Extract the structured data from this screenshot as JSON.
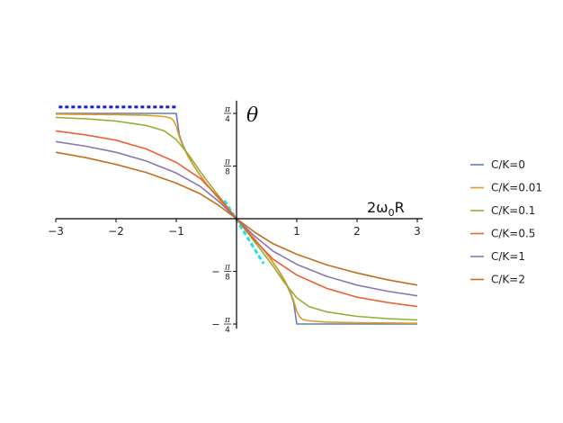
{
  "chart_data": {
    "type": "line",
    "xlabel": "2ω0R",
    "ylabel": "θ",
    "xlim": [
      -3,
      3
    ],
    "ylim": [
      -0.82,
      0.88
    ],
    "x_ticks": [
      {
        "value": -3,
        "label": "−3"
      },
      {
        "value": -2,
        "label": "−2"
      },
      {
        "value": -1,
        "label": "−1"
      },
      {
        "value": 1,
        "label": "1"
      },
      {
        "value": 2,
        "label": "2"
      },
      {
        "value": 3,
        "label": "3"
      }
    ],
    "y_ticks": [
      {
        "value": 0.785398,
        "num": "π",
        "den": "4",
        "neg": false
      },
      {
        "value": 0.392699,
        "num": "π",
        "den": "8",
        "neg": false
      },
      {
        "value": -0.392699,
        "num": "π",
        "den": "8",
        "neg": true
      },
      {
        "value": -0.785398,
        "num": "π",
        "den": "4",
        "neg": true
      }
    ],
    "legend_position": "right",
    "series": [
      {
        "name": "C/K=0",
        "color": "#5e81b5",
        "x": [
          -3,
          -1,
          -0.95,
          -0.9,
          -0.8,
          -0.7,
          -0.6,
          -0.5,
          -0.4,
          -0.3,
          -0.2,
          -0.1,
          0,
          0.1,
          0.2,
          0.3,
          0.4,
          0.5,
          0.6,
          0.7,
          0.8,
          0.9,
          0.95,
          1,
          3
        ],
        "y": [
          0.785,
          0.785,
          0.627,
          0.561,
          0.464,
          0.388,
          0.322,
          0.262,
          0.206,
          0.152,
          0.101,
          0.05,
          0,
          -0.05,
          -0.101,
          -0.152,
          -0.206,
          -0.262,
          -0.322,
          -0.388,
          -0.464,
          -0.561,
          -0.627,
          -0.785,
          -0.785
        ]
      },
      {
        "name": "C/K=0.01",
        "color": "#e19c24",
        "x": [
          -3,
          -2,
          -1.5,
          -1.2,
          -1.1,
          -1.05,
          -1,
          -0.95,
          -0.9,
          -0.8,
          -0.7,
          -0.6,
          -0.5,
          -0.4,
          -0.3,
          -0.2,
          -0.1,
          0,
          0.1,
          0.2,
          0.3,
          0.4,
          0.5,
          0.6,
          0.7,
          0.8,
          0.9,
          0.95,
          1,
          1.05,
          1.1,
          1.2,
          1.5,
          2,
          3
        ],
        "y": [
          0.78,
          0.776,
          0.771,
          0.762,
          0.752,
          0.735,
          0.69,
          0.612,
          0.553,
          0.46,
          0.386,
          0.321,
          0.261,
          0.205,
          0.152,
          0.101,
          0.05,
          0,
          -0.05,
          -0.101,
          -0.152,
          -0.205,
          -0.261,
          -0.321,
          -0.386,
          -0.46,
          -0.553,
          -0.612,
          -0.69,
          -0.735,
          -0.752,
          -0.762,
          -0.771,
          -0.776,
          -0.78
        ]
      },
      {
        "name": "C/K=0.1",
        "color": "#8fb032",
        "x": [
          -3,
          -2.5,
          -2,
          -1.5,
          -1.2,
          -1,
          -0.8,
          -0.6,
          -0.4,
          -0.2,
          0,
          0.2,
          0.4,
          0.6,
          0.8,
          1,
          1.2,
          1.5,
          2,
          2.5,
          3
        ],
        "y": [
          0.755,
          0.745,
          0.728,
          0.695,
          0.655,
          0.59,
          0.48,
          0.35,
          0.23,
          0.115,
          0,
          -0.115,
          -0.23,
          -0.35,
          -0.48,
          -0.59,
          -0.655,
          -0.695,
          -0.728,
          -0.745,
          -0.755
        ]
      },
      {
        "name": "C/K=0.5",
        "color": "#eb6235",
        "x": [
          -3,
          -2.5,
          -2,
          -1.5,
          -1,
          -0.6,
          -0.3,
          0,
          0.3,
          0.6,
          1,
          1.5,
          2,
          2.5,
          3
        ],
        "y": [
          0.655,
          0.625,
          0.585,
          0.52,
          0.42,
          0.3,
          0.16,
          0,
          -0.16,
          -0.3,
          -0.42,
          -0.52,
          -0.585,
          -0.625,
          -0.655
        ]
      },
      {
        "name": "C/K=1",
        "color": "#8778b3",
        "x": [
          -3,
          -2.5,
          -2,
          -1.5,
          -1,
          -0.6,
          -0.3,
          0,
          0.3,
          0.6,
          1,
          1.5,
          2,
          2.5,
          3
        ],
        "y": [
          0.575,
          0.54,
          0.495,
          0.43,
          0.34,
          0.24,
          0.13,
          0,
          -0.13,
          -0.24,
          -0.34,
          -0.43,
          -0.495,
          -0.54,
          -0.575
        ]
      },
      {
        "name": "C/K=2",
        "color": "#c56e1a",
        "x": [
          -3,
          -2.5,
          -2,
          -1.5,
          -1,
          -0.6,
          -0.3,
          0,
          0.3,
          0.6,
          1,
          1.5,
          2,
          2.5,
          3
        ],
        "y": [
          0.495,
          0.455,
          0.405,
          0.345,
          0.265,
          0.185,
          0.1,
          0,
          -0.1,
          -0.185,
          -0.265,
          -0.345,
          -0.405,
          -0.455,
          -0.495
        ]
      }
    ],
    "reference_lines": [
      {
        "color": "#1c1ccf",
        "dash": "dotted",
        "x": [
          -2.95,
          -1
        ],
        "y": [
          0.833,
          0.833
        ]
      },
      {
        "color": "#22e1e1",
        "dash": "dashed",
        "x": [
          -0.2,
          0.45
        ],
        "y": [
          0.136,
          -0.335
        ]
      }
    ]
  }
}
